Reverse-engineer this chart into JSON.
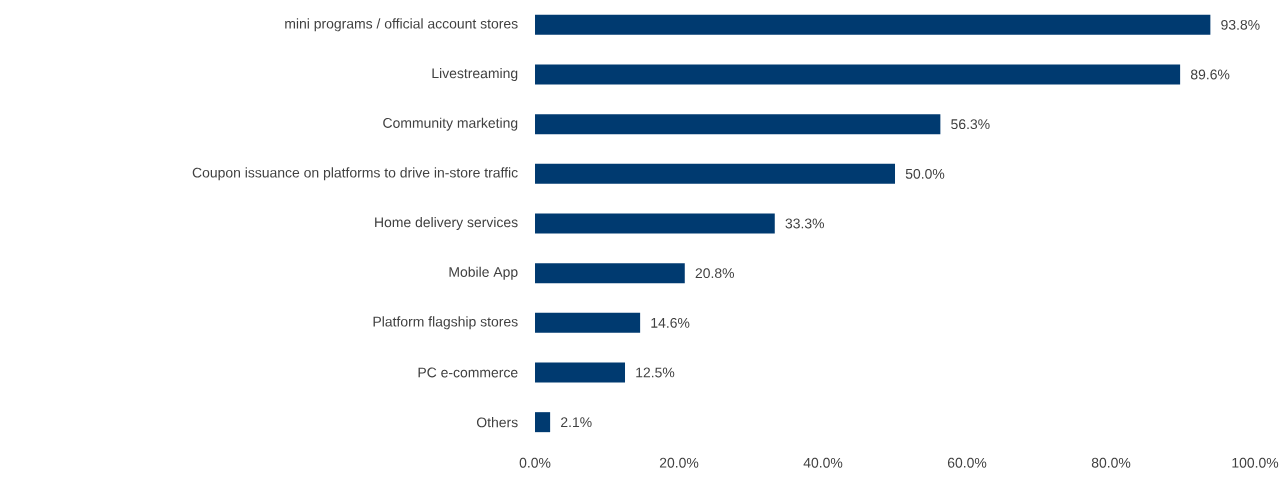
{
  "chart_data": {
    "type": "bar",
    "orientation": "horizontal",
    "categories": [
      "mini programs / official account stores",
      "Livestreaming",
      "Community marketing",
      "Coupon issuance on platforms to drive in-store traffic",
      "Home delivery services",
      "Mobile App",
      "Platform flagship stores",
      "PC e-commerce",
      "Others"
    ],
    "values": [
      93.8,
      89.6,
      56.3,
      50.0,
      33.3,
      20.8,
      14.6,
      12.5,
      2.1
    ],
    "value_labels": [
      "93.8%",
      "89.6%",
      "56.3%",
      "50.0%",
      "33.3%",
      "20.8%",
      "14.6%",
      "12.5%",
      "2.1%"
    ],
    "color": "#003a70",
    "xlim": [
      0,
      100
    ],
    "xticks": [
      {
        "value": 0,
        "label": "0.0%"
      },
      {
        "value": 20,
        "label": "20.0%"
      },
      {
        "value": 40,
        "label": "40.0%"
      },
      {
        "value": 60,
        "label": "60.0%"
      },
      {
        "value": 80,
        "label": "80.0%"
      },
      {
        "value": 100,
        "label": "100.0%"
      }
    ],
    "grid": false
  }
}
